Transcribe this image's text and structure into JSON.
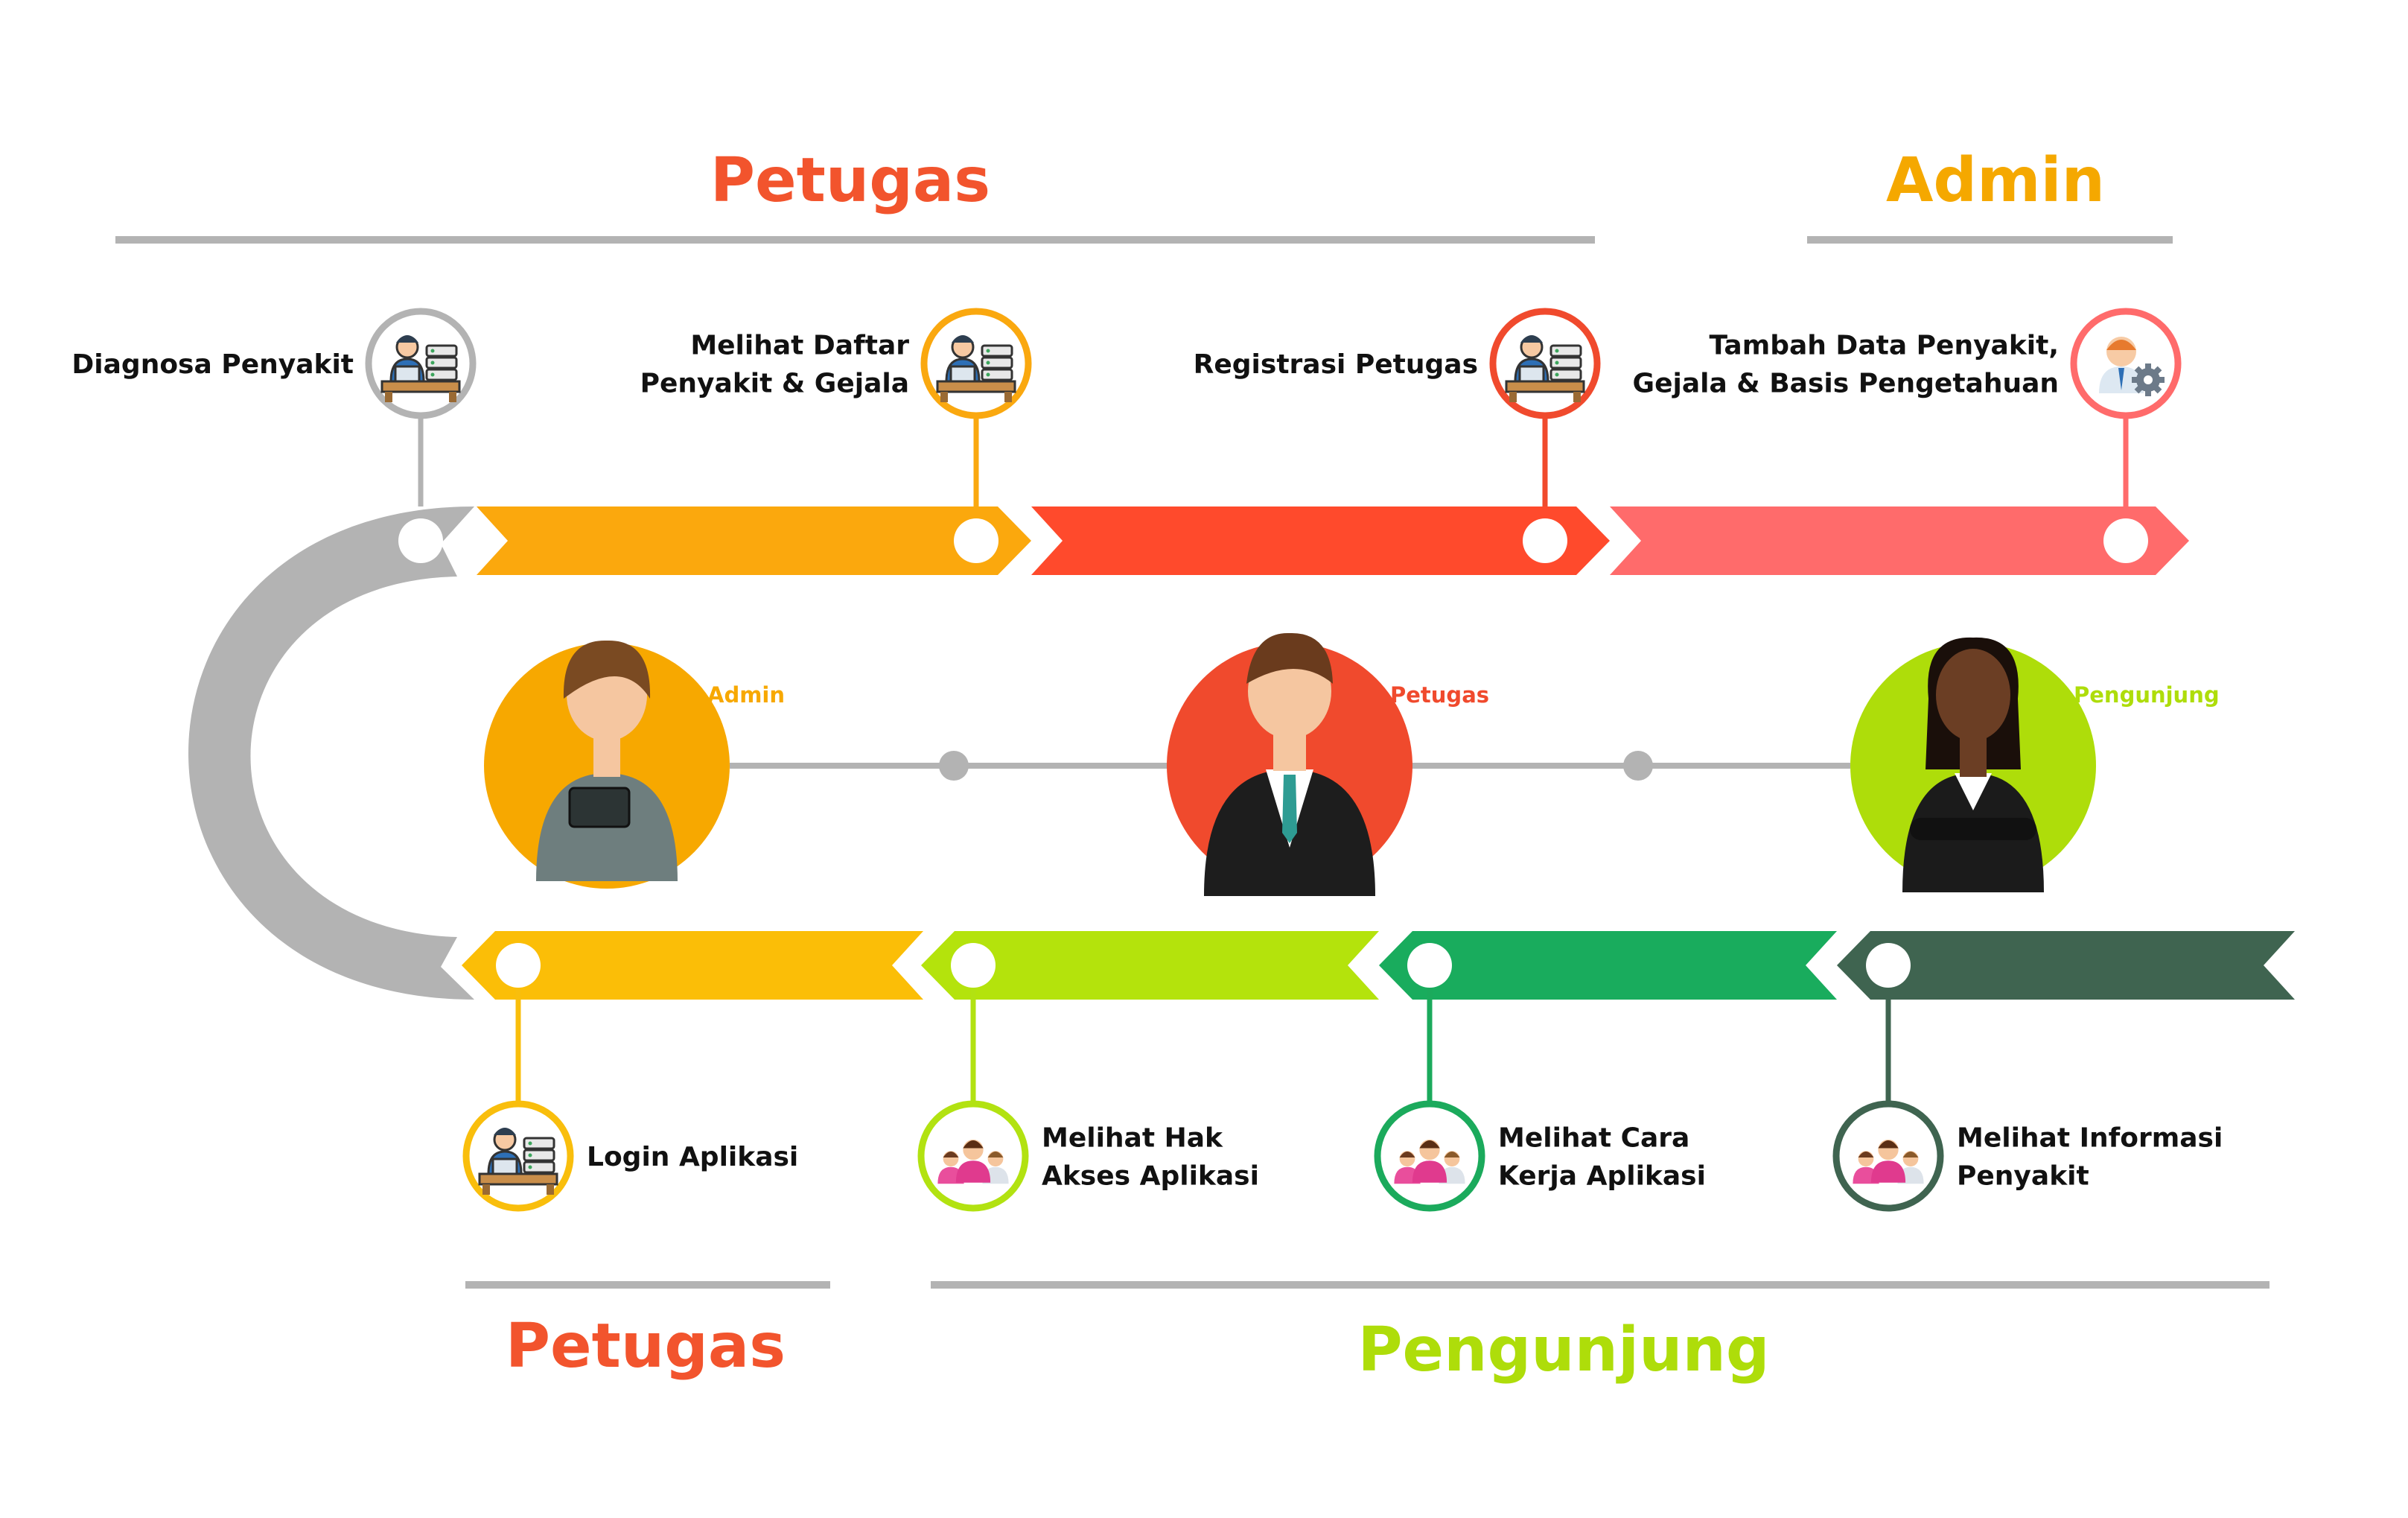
{
  "sections": {
    "top_left": {
      "title": "Petugas",
      "color": "#F2542D"
    },
    "top_right": {
      "title": "Admin",
      "color": "#F5A800"
    },
    "bottom_left": {
      "title": "Petugas",
      "color": "#F2542D"
    },
    "bottom_right": {
      "title": "Pengunjung",
      "color": "#AEDD0A"
    }
  },
  "top_steps": [
    {
      "label_lines": [
        "Diagnosa Penyakit"
      ],
      "icon": "staff-computer-icon",
      "ring_color": "#B3B3B3"
    },
    {
      "label_lines": [
        "Melihat Daftar",
        "Penyakit & Gejala"
      ],
      "icon": "staff-computer-icon",
      "ring_color": "#FAA80F"
    },
    {
      "label_lines": [
        "Registrasi Petugas"
      ],
      "icon": "staff-computer-icon",
      "ring_color": "#F04A2D"
    },
    {
      "label_lines": [
        "Tambah Data Penyakit,",
        "Gejala & Basis Pengetahuan"
      ],
      "icon": "admin-settings-icon",
      "ring_color": "#FF6B6B"
    }
  ],
  "bottom_steps": [
    {
      "label_lines": [
        "Login Aplikasi"
      ],
      "icon": "staff-computer-icon",
      "ring_color": "#F9BE0C"
    },
    {
      "label_lines": [
        "Melihat Hak",
        "Akses Aplikasi"
      ],
      "icon": "visitors-group-icon",
      "ring_color": "#B2E211"
    },
    {
      "label_lines": [
        "Melihat Cara",
        "Kerja Aplikasi"
      ],
      "icon": "visitors-group-icon",
      "ring_color": "#1BAA5C"
    },
    {
      "label_lines": [
        "Melihat Informasi",
        "Penyakit"
      ],
      "icon": "visitors-group-icon",
      "ring_color": "#3F6450"
    }
  ],
  "personas": [
    {
      "tag": "Admin",
      "color": "#F7A800",
      "icon": "admin-woman-avatar"
    },
    {
      "tag": "Petugas",
      "color": "#F04A2D",
      "icon": "officer-man-avatar"
    },
    {
      "tag": "Pengunjung",
      "color": "#AEDD0A",
      "icon": "visitor-woman-avatar"
    }
  ],
  "colors": {
    "top_arrows": [
      "#FBA80D",
      "#FF4A2C",
      "#FF6B6B"
    ],
    "bottom_arrows": [
      "#FBBE07",
      "#B4E30C",
      "#19AC5D",
      "#3F6450"
    ],
    "connector_arc": "#B3B3B3",
    "rule_lines": "#B3B3B3"
  }
}
